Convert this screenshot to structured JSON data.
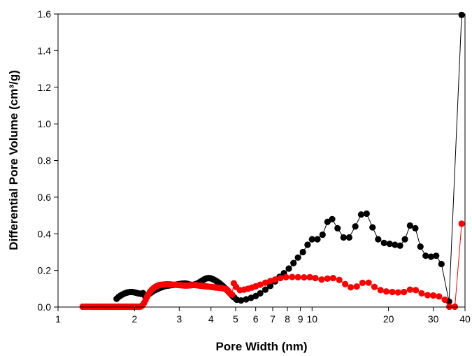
{
  "chart_data": {
    "type": "scatter",
    "title": "",
    "xlabel": "Pore Width (nm)",
    "ylabel": "Differential Pore Volume (cm³/g)",
    "x_scale": "log",
    "xlim": [
      1,
      40
    ],
    "ylim": [
      0,
      1.6
    ],
    "x_ticks": [
      1,
      2,
      3,
      4,
      5,
      6,
      7,
      8,
      9,
      10,
      20,
      30,
      40
    ],
    "x_tick_labels": [
      "1",
      "2",
      "3",
      "4",
      "5",
      "6",
      "7",
      "8",
      "9",
      "10",
      "20",
      "30",
      "40"
    ],
    "y_ticks": [
      0,
      0.2,
      0.4,
      0.6,
      0.8,
      1.0,
      1.2,
      1.4,
      1.6
    ],
    "y_tick_labels": [
      "0.0",
      "0.2",
      "0.4",
      "0.6",
      "0.8",
      "1.0",
      "1.2",
      "1.4",
      "1.6"
    ],
    "grid": false,
    "legend": false,
    "series": [
      {
        "color": "#000000",
        "marker": "circle",
        "line": true,
        "points": [
          [
            1.7,
            0.045
          ],
          [
            1.73,
            0.055
          ],
          [
            1.76,
            0.062
          ],
          [
            1.79,
            0.068
          ],
          [
            1.82,
            0.073
          ],
          [
            1.85,
            0.077
          ],
          [
            1.88,
            0.08
          ],
          [
            1.92,
            0.082
          ],
          [
            1.96,
            0.082
          ],
          [
            2.0,
            0.08
          ],
          [
            2.04,
            0.077
          ],
          [
            2.08,
            0.074
          ],
          [
            2.12,
            0.072
          ],
          [
            2.16,
            0.076
          ],
          [
            2.2,
            0.06
          ],
          [
            2.24,
            0.062
          ],
          [
            2.28,
            0.07
          ],
          [
            2.32,
            0.078
          ],
          [
            2.36,
            0.085
          ],
          [
            2.41,
            0.092
          ],
          [
            2.46,
            0.098
          ],
          [
            2.51,
            0.104
          ],
          [
            2.56,
            0.108
          ],
          [
            2.61,
            0.112
          ],
          [
            2.66,
            0.115
          ],
          [
            2.72,
            0.117
          ],
          [
            2.78,
            0.119
          ],
          [
            2.84,
            0.12
          ],
          [
            2.9,
            0.122
          ],
          [
            2.96,
            0.124
          ],
          [
            3.02,
            0.126
          ],
          [
            3.08,
            0.128
          ],
          [
            3.14,
            0.129
          ],
          [
            3.2,
            0.128
          ],
          [
            3.26,
            0.125
          ],
          [
            3.32,
            0.122
          ],
          [
            3.38,
            0.121
          ],
          [
            3.44,
            0.123
          ],
          [
            3.5,
            0.126
          ],
          [
            3.56,
            0.131
          ],
          [
            3.62,
            0.137
          ],
          [
            3.68,
            0.143
          ],
          [
            3.74,
            0.149
          ],
          [
            3.8,
            0.154
          ],
          [
            3.86,
            0.157
          ],
          [
            3.92,
            0.158
          ],
          [
            3.98,
            0.157
          ],
          [
            4.04,
            0.154
          ],
          [
            4.1,
            0.15
          ],
          [
            4.16,
            0.145
          ],
          [
            4.22,
            0.14
          ],
          [
            4.28,
            0.134
          ],
          [
            4.34,
            0.128
          ],
          [
            4.4,
            0.121
          ],
          [
            4.46,
            0.114
          ],
          [
            4.52,
            0.106
          ],
          [
            4.58,
            0.098
          ],
          [
            4.64,
            0.09
          ],
          [
            4.7,
            0.082
          ],
          [
            4.76,
            0.074
          ],
          [
            4.82,
            0.066
          ],
          [
            4.88,
            0.058
          ],
          [
            4.94,
            0.052
          ],
          [
            5.05,
            0.04
          ],
          [
            5.25,
            0.036
          ],
          [
            5.5,
            0.042
          ],
          [
            5.75,
            0.05
          ],
          [
            6.0,
            0.06
          ],
          [
            6.25,
            0.075
          ],
          [
            6.55,
            0.095
          ],
          [
            6.85,
            0.115
          ],
          [
            7.15,
            0.14
          ],
          [
            7.45,
            0.165
          ],
          [
            7.75,
            0.185
          ],
          [
            8.1,
            0.21
          ],
          [
            8.45,
            0.24
          ],
          [
            8.8,
            0.27
          ],
          [
            9.2,
            0.3
          ],
          [
            9.6,
            0.34
          ],
          [
            10.0,
            0.37
          ],
          [
            10.5,
            0.37
          ],
          [
            11.0,
            0.395
          ],
          [
            11.5,
            0.465
          ],
          [
            12.0,
            0.48
          ],
          [
            12.6,
            0.43
          ],
          [
            13.3,
            0.38
          ],
          [
            14.0,
            0.38
          ],
          [
            14.8,
            0.44
          ],
          [
            15.6,
            0.505
          ],
          [
            16.4,
            0.51
          ],
          [
            17.3,
            0.435
          ],
          [
            18.2,
            0.37
          ],
          [
            19.2,
            0.35
          ],
          [
            20.2,
            0.345
          ],
          [
            21.2,
            0.34
          ],
          [
            22.2,
            0.335
          ],
          [
            23.2,
            0.37
          ],
          [
            24.3,
            0.445
          ],
          [
            25.5,
            0.43
          ],
          [
            26.7,
            0.33
          ],
          [
            28.0,
            0.28
          ],
          [
            29.4,
            0.275
          ],
          [
            30.8,
            0.28
          ],
          [
            32.3,
            0.235
          ],
          [
            34.6,
            0.03
          ],
          [
            38.8,
            1.595
          ]
        ]
      },
      {
        "color": "#ff0000",
        "marker": "circle",
        "line": true,
        "points": [
          [
            1.25,
            0.002
          ],
          [
            1.28,
            0.002
          ],
          [
            1.31,
            0.002
          ],
          [
            1.34,
            0.002
          ],
          [
            1.37,
            0.002
          ],
          [
            1.4,
            0.002
          ],
          [
            1.43,
            0.002
          ],
          [
            1.46,
            0.002
          ],
          [
            1.49,
            0.002
          ],
          [
            1.52,
            0.002
          ],
          [
            1.55,
            0.002
          ],
          [
            1.58,
            0.002
          ],
          [
            1.61,
            0.002
          ],
          [
            1.64,
            0.002
          ],
          [
            1.67,
            0.002
          ],
          [
            1.7,
            0.002
          ],
          [
            1.73,
            0.002
          ],
          [
            1.76,
            0.002
          ],
          [
            1.79,
            0.002
          ],
          [
            1.82,
            0.002
          ],
          [
            1.85,
            0.002
          ],
          [
            1.88,
            0.002
          ],
          [
            1.91,
            0.002
          ],
          [
            1.94,
            0.002
          ],
          [
            1.97,
            0.002
          ],
          [
            2.0,
            0.002
          ],
          [
            2.03,
            0.002
          ],
          [
            2.06,
            0.002
          ],
          [
            2.09,
            0.002
          ],
          [
            2.12,
            0.003
          ],
          [
            2.15,
            0.01
          ],
          [
            2.18,
            0.022
          ],
          [
            2.21,
            0.038
          ],
          [
            2.24,
            0.055
          ],
          [
            2.27,
            0.07
          ],
          [
            2.3,
            0.083
          ],
          [
            2.34,
            0.095
          ],
          [
            2.38,
            0.104
          ],
          [
            2.42,
            0.111
          ],
          [
            2.46,
            0.116
          ],
          [
            2.5,
            0.12
          ],
          [
            2.55,
            0.122
          ],
          [
            2.6,
            0.123
          ],
          [
            2.65,
            0.124
          ],
          [
            2.7,
            0.124
          ],
          [
            2.75,
            0.124
          ],
          [
            2.8,
            0.123
          ],
          [
            2.86,
            0.122
          ],
          [
            2.92,
            0.121
          ],
          [
            2.98,
            0.12
          ],
          [
            3.04,
            0.119
          ],
          [
            3.1,
            0.118
          ],
          [
            3.16,
            0.117
          ],
          [
            3.22,
            0.117
          ],
          [
            3.28,
            0.118
          ],
          [
            3.34,
            0.119
          ],
          [
            3.4,
            0.12
          ],
          [
            3.46,
            0.12
          ],
          [
            3.52,
            0.119
          ],
          [
            3.58,
            0.118
          ],
          [
            3.64,
            0.116
          ],
          [
            3.7,
            0.115
          ],
          [
            3.76,
            0.114
          ],
          [
            3.82,
            0.113
          ],
          [
            3.88,
            0.112
          ],
          [
            3.94,
            0.111
          ],
          [
            4.0,
            0.11
          ],
          [
            4.06,
            0.109
          ],
          [
            4.12,
            0.108
          ],
          [
            4.18,
            0.107
          ],
          [
            4.24,
            0.106
          ],
          [
            4.3,
            0.105
          ],
          [
            4.36,
            0.104
          ],
          [
            4.42,
            0.103
          ],
          [
            4.48,
            0.102
          ],
          [
            4.54,
            0.1
          ],
          [
            4.6,
            0.098
          ],
          [
            4.66,
            0.09
          ],
          [
            4.72,
            0.08
          ],
          [
            4.78,
            0.072
          ],
          [
            4.84,
            0.068
          ],
          [
            4.92,
            0.13
          ],
          [
            5.02,
            0.11
          ],
          [
            5.2,
            0.092
          ],
          [
            5.4,
            0.095
          ],
          [
            5.6,
            0.1
          ],
          [
            5.8,
            0.106
          ],
          [
            6.0,
            0.113
          ],
          [
            6.25,
            0.122
          ],
          [
            6.55,
            0.133
          ],
          [
            6.85,
            0.142
          ],
          [
            7.15,
            0.15
          ],
          [
            7.5,
            0.158
          ],
          [
            7.9,
            0.163
          ],
          [
            8.35,
            0.164
          ],
          [
            8.8,
            0.163
          ],
          [
            9.3,
            0.162
          ],
          [
            9.8,
            0.163
          ],
          [
            10.3,
            0.158
          ],
          [
            10.9,
            0.15
          ],
          [
            11.5,
            0.155
          ],
          [
            12.1,
            0.158
          ],
          [
            12.8,
            0.148
          ],
          [
            13.5,
            0.125
          ],
          [
            14.2,
            0.108
          ],
          [
            15.0,
            0.112
          ],
          [
            15.8,
            0.132
          ],
          [
            16.7,
            0.133
          ],
          [
            17.6,
            0.11
          ],
          [
            18.6,
            0.092
          ],
          [
            19.6,
            0.085
          ],
          [
            20.7,
            0.082
          ],
          [
            21.8,
            0.08
          ],
          [
            23.0,
            0.082
          ],
          [
            24.3,
            0.095
          ],
          [
            25.6,
            0.092
          ],
          [
            27.0,
            0.075
          ],
          [
            28.5,
            0.065
          ],
          [
            30.0,
            0.063
          ],
          [
            31.6,
            0.058
          ],
          [
            33.3,
            0.04
          ],
          [
            34.7,
            0.002
          ],
          [
            36.5,
            0.002
          ],
          [
            38.8,
            0.455
          ]
        ]
      }
    ]
  }
}
